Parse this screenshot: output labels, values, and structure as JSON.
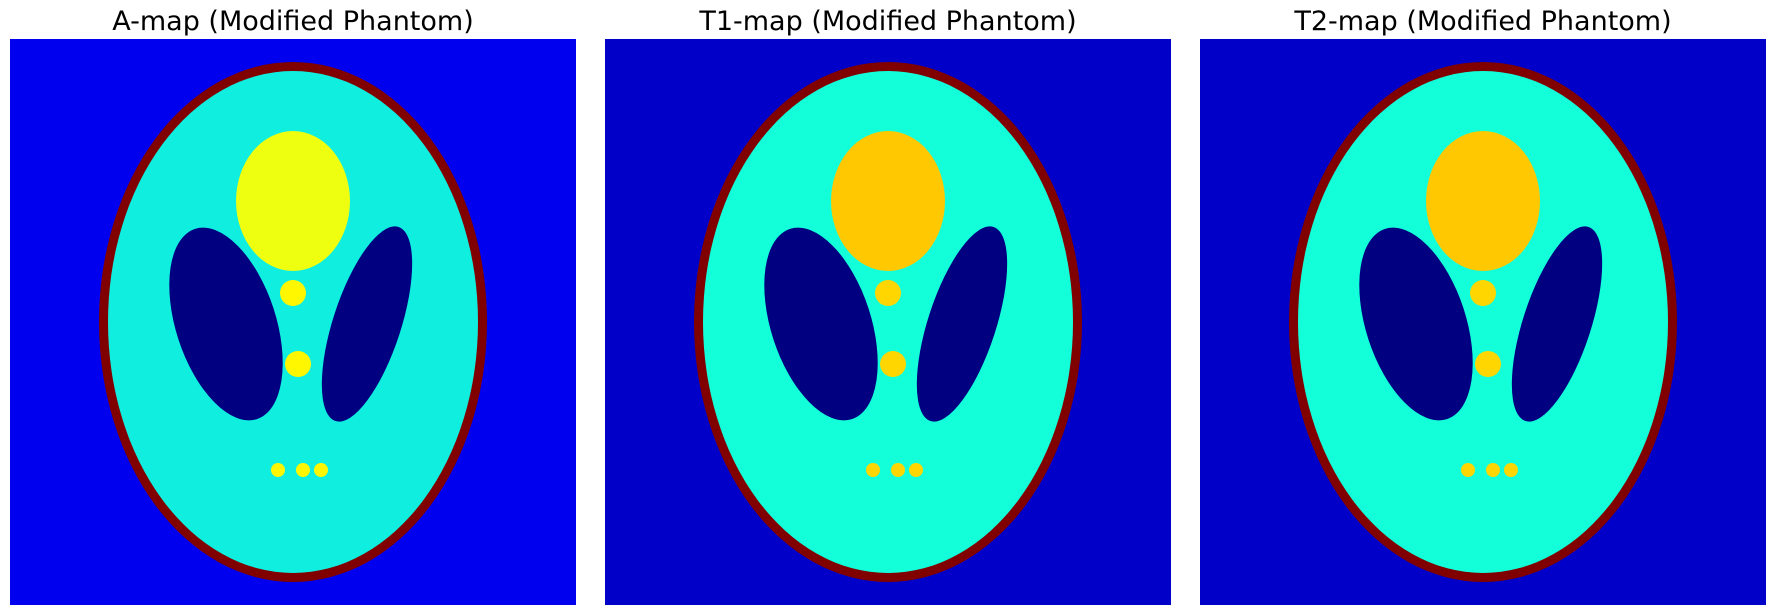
{
  "panels": [
    {
      "title": "A-map (Modified Phantom)",
      "colors": {
        "background": "#0000ee",
        "skull": "#800000",
        "brain": "#10eedf",
        "ventricles": "#000080",
        "center_ellipse": "#eeff10",
        "small_features": "#fff700"
      }
    },
    {
      "title": "T1-map (Modified Phantom)",
      "colors": {
        "background": "#0000c8",
        "skull": "#800000",
        "brain": "#13ffd9",
        "ventricles": "#000080",
        "center_ellipse": "#ffc800",
        "small_features": "#ffd600"
      }
    },
    {
      "title": "T2-map (Modified Phantom)",
      "colors": {
        "background": "#0000c8",
        "skull": "#800000",
        "brain": "#13ffd9",
        "ventricles": "#000080",
        "center_ellipse": "#ffc800",
        "small_features": "#ffd600"
      }
    }
  ]
}
